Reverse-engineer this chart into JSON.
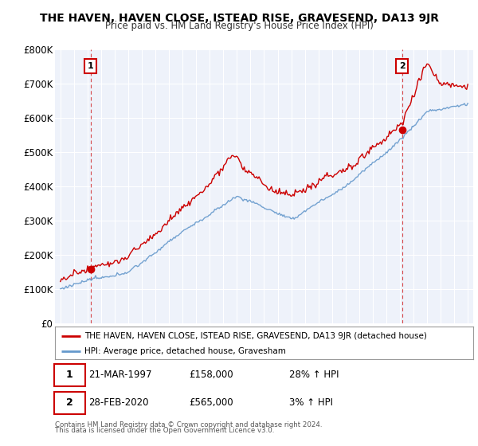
{
  "title": "THE HAVEN, HAVEN CLOSE, ISTEAD RISE, GRAVESEND, DA13 9JR",
  "subtitle": "Price paid vs. HM Land Registry's House Price Index (HPI)",
  "ylim": [
    0,
    800000
  ],
  "yticks": [
    0,
    100000,
    200000,
    300000,
    400000,
    500000,
    600000,
    700000,
    800000
  ],
  "ytick_labels": [
    "£0",
    "£100K",
    "£200K",
    "£300K",
    "£400K",
    "£500K",
    "£600K",
    "£700K",
    "£800K"
  ],
  "sale1_date": 1997.22,
  "sale1_price": 158000,
  "sale1_label": "1",
  "sale1_info_date": "21-MAR-1997",
  "sale1_info_price": "£158,000",
  "sale1_info_hpi": "28% ↑ HPI",
  "sale2_date": 2020.16,
  "sale2_price": 565000,
  "sale2_label": "2",
  "sale2_info_date": "28-FEB-2020",
  "sale2_info_price": "£565,000",
  "sale2_info_hpi": "3% ↑ HPI",
  "legend_line1": "THE HAVEN, HAVEN CLOSE, ISTEAD RISE, GRAVESEND, DA13 9JR (detached house)",
  "legend_line2": "HPI: Average price, detached house, Gravesham",
  "footer1": "Contains HM Land Registry data © Crown copyright and database right 2024.",
  "footer2": "This data is licensed under the Open Government Licence v3.0.",
  "line_color_red": "#cc0000",
  "line_color_blue": "#6699cc",
  "bg_color": "#eef2fa",
  "grid_color": "#ffffff",
  "box_color": "#cc0000"
}
